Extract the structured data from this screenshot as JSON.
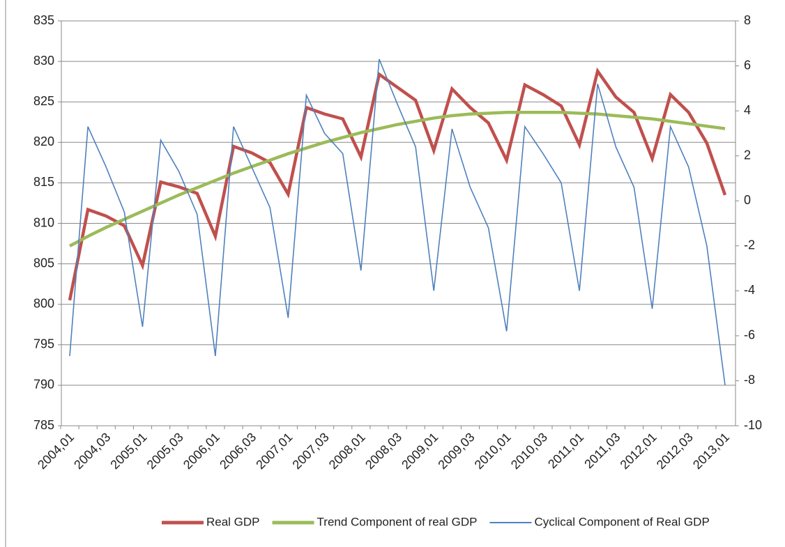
{
  "chart_data": {
    "type": "line",
    "categories": [
      "2004,01",
      null,
      "2004,03",
      null,
      "2005,01",
      null,
      "2005,03",
      null,
      "2006,01",
      null,
      "2006,03",
      null,
      "2007,01",
      null,
      "2007,03",
      null,
      "2008,01",
      null,
      "2008,03",
      null,
      "2009,01",
      null,
      "2009,03",
      null,
      "2010,01",
      null,
      "2010,03",
      null,
      "2011,01",
      null,
      "2011,03",
      null,
      "2012,01",
      null,
      "2012,03",
      null,
      "2013,01"
    ],
    "series": [
      {
        "name": "Real GDP",
        "color": "#c0504d",
        "values": [
          800.5,
          811.7,
          810.9,
          809.7,
          804.8,
          815.1,
          814.5,
          813.7,
          808.4,
          819.5,
          818.7,
          817.5,
          813.6,
          824.3,
          823.5,
          822.9,
          818.2,
          828.4,
          826.8,
          825.2,
          819.0,
          826.6,
          824.3,
          822.4,
          817.8,
          827.1,
          825.9,
          824.5,
          819.7,
          828.8,
          825.6,
          823.7,
          818.0,
          825.9,
          823.7,
          819.9,
          813.5
        ]
      },
      {
        "name": "Trend Component of real GDP",
        "color": "#9bbb59",
        "values": [
          807.2,
          808.4,
          809.5,
          810.5,
          811.5,
          812.5,
          813.5,
          814.4,
          815.3,
          816.2,
          817.0,
          817.8,
          818.6,
          819.3,
          820.0,
          820.6,
          821.2,
          821.7,
          822.2,
          822.6,
          823.0,
          823.3,
          823.5,
          823.6,
          823.7,
          823.7,
          823.7,
          823.7,
          823.6,
          823.5,
          823.3,
          823.1,
          822.9,
          822.6,
          822.3,
          822.0,
          821.7
        ]
      },
      {
        "name": "Cyclical Component of Real GDP",
        "color": "#4f81bd",
        "axis": "y2",
        "values": [
          -6.9,
          3.3,
          1.5,
          -0.5,
          -5.6,
          2.7,
          1.3,
          -0.6,
          -6.9,
          3.3,
          1.5,
          -0.3,
          -5.2,
          4.7,
          3.0,
          2.1,
          -3.1,
          6.3,
          4.3,
          2.4,
          -4.0,
          3.2,
          0.6,
          -1.2,
          -5.8,
          3.3,
          2.1,
          0.8,
          -4.0,
          5.2,
          2.4,
          0.6,
          -4.8,
          3.3,
          1.5,
          -2.0,
          -8.2
        ]
      }
    ],
    "ylim": [
      785,
      835
    ],
    "yticks": [
      785,
      790,
      795,
      800,
      805,
      810,
      815,
      820,
      825,
      830,
      835
    ],
    "y2lim": [
      -10,
      8
    ],
    "y2ticks": [
      -10,
      -8,
      -6,
      -4,
      -2,
      0,
      2,
      4,
      6,
      8
    ],
    "grid": true,
    "legend": "bottom"
  }
}
